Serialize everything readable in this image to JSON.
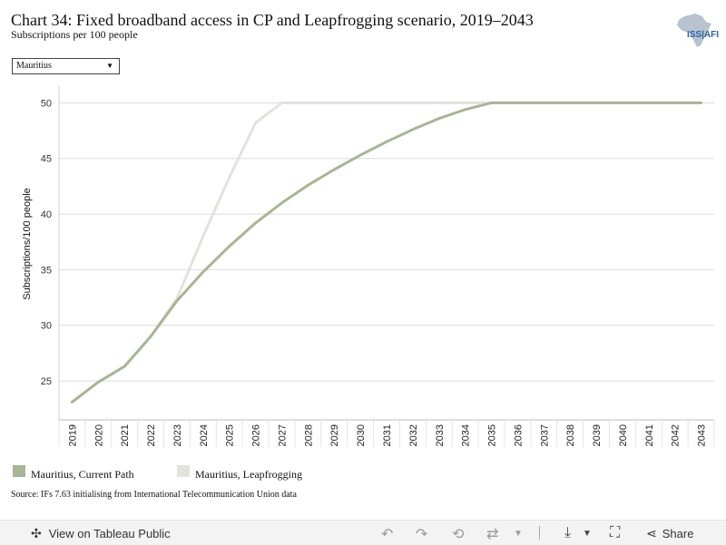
{
  "header": {
    "title": "Chart 34: Fixed broadband access in CP and Leapfrogging scenario, 2019–2043",
    "subtitle": "Subscriptions per 100 people",
    "logo_text": "ISS|AFI"
  },
  "filter": {
    "selected": "Mauritius"
  },
  "chart_data": {
    "type": "line",
    "title": "Chart 34: Fixed broadband access in CP and Leapfrogging scenario, 2019–2043",
    "subtitle": "Subscriptions per 100 people",
    "xlabel": "",
    "ylabel": "Subscriptions/100 people",
    "x": [
      2019,
      2020,
      2021,
      2022,
      2023,
      2024,
      2025,
      2026,
      2027,
      2028,
      2029,
      2030,
      2031,
      2032,
      2033,
      2034,
      2035,
      2036,
      2037,
      2038,
      2039,
      2040,
      2041,
      2042,
      2043
    ],
    "yticks": [
      25,
      30,
      35,
      40,
      45,
      50
    ],
    "ylim": [
      21.5,
      51.5
    ],
    "grid": true,
    "legend_position": "bottom-left",
    "series": [
      {
        "name": "Mauritius, Leapfrogging",
        "color": "#e2e3da",
        "values": [
          23.1,
          24.9,
          26.3,
          29.0,
          32.4,
          38.0,
          43.3,
          48.2,
          50.0,
          50.0,
          50.0,
          50.0,
          50.0,
          50.0,
          50.0,
          50.0,
          50.0,
          50.0,
          50.0,
          50.0,
          50.0,
          50.0,
          50.0,
          50.0,
          50.0
        ]
      },
      {
        "name": "Mauritius, Current Path",
        "color": "#a8b596",
        "values": [
          23.1,
          24.9,
          26.3,
          29.0,
          32.2,
          34.8,
          37.1,
          39.2,
          41.0,
          42.6,
          44.0,
          45.3,
          46.5,
          47.6,
          48.6,
          49.4,
          50.0,
          50.0,
          50.0,
          50.0,
          50.0,
          50.0,
          50.0,
          50.0,
          50.0
        ]
      }
    ]
  },
  "legend": [
    {
      "label": "Mauritius, Current Path",
      "color": "#a8b596"
    },
    {
      "label": "Mauritius, Leapfrogging",
      "color": "#e2e3da"
    }
  ],
  "source": "Source: IFs 7.63 initialising from International Telecommunication Union data",
  "footer": {
    "view_label": "View on Tableau Public",
    "share_label": "Share"
  }
}
